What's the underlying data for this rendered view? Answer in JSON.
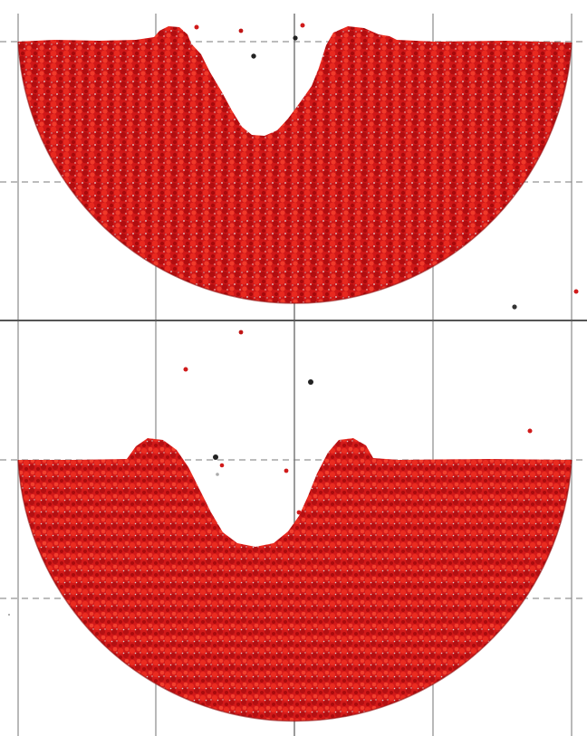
{
  "figure": {
    "panels": [
      {
        "id": "top",
        "particle_color": "#d8191a",
        "highlight_color": "#c9c9c9"
      },
      {
        "id": "bottom",
        "particle_color": "#d8191a",
        "highlight_color": "#c9c9c9"
      }
    ],
    "grid_solid_color": "#808080",
    "grid_dashed_color": "#7a7a7a",
    "divider_color": "#555555",
    "background_color": "#ffffff"
  }
}
